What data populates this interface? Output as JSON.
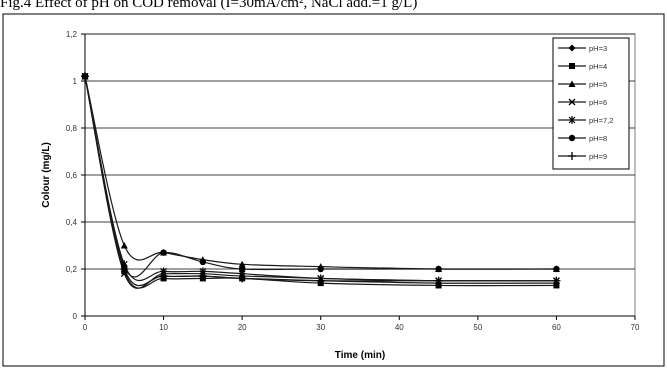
{
  "caption": "Fig.4 Effect of pH on COD removal (I=30mA/cm², NaCl add.=1 g/L)",
  "chart_data": {
    "type": "line",
    "title": "",
    "xlabel": "Time (min)",
    "ylabel": "Colour (mg/L)",
    "xlim": [
      0,
      70
    ],
    "ylim": [
      0,
      1.2
    ],
    "xticks": [
      0,
      10,
      20,
      30,
      40,
      50,
      60,
      70
    ],
    "yticks": [
      "0",
      "0,2",
      "0,4",
      "0,6",
      "0,8",
      "1",
      "1,2"
    ],
    "grid": "horizontal",
    "legend_position": "top-right",
    "x": [
      0,
      5,
      10,
      15,
      20,
      30,
      45,
      60
    ],
    "series": [
      {
        "name": "pH=3",
        "marker": "diamond",
        "values": [
          1.02,
          0.2,
          0.17,
          0.17,
          0.16,
          0.15,
          0.14,
          0.14
        ]
      },
      {
        "name": "pH=4",
        "marker": "square",
        "values": [
          1.02,
          0.19,
          0.16,
          0.16,
          0.16,
          0.14,
          0.13,
          0.13
        ]
      },
      {
        "name": "pH=5",
        "marker": "triangle",
        "values": [
          1.02,
          0.3,
          0.27,
          0.24,
          0.22,
          0.21,
          0.2,
          0.2
        ]
      },
      {
        "name": "pH=6",
        "marker": "x",
        "values": [
          1.02,
          0.18,
          0.18,
          0.18,
          0.17,
          0.16,
          0.15,
          0.15
        ]
      },
      {
        "name": "pH=7,2",
        "marker": "star",
        "values": [
          1.02,
          0.22,
          0.19,
          0.19,
          0.18,
          0.16,
          0.15,
          0.15
        ]
      },
      {
        "name": "pH=8",
        "marker": "circle",
        "values": [
          1.02,
          0.21,
          0.27,
          0.23,
          0.2,
          0.2,
          0.2,
          0.2
        ]
      },
      {
        "name": "pH=9",
        "marker": "plus",
        "values": [
          1.02,
          0.2,
          0.17,
          0.17,
          0.16,
          0.15,
          0.15,
          0.15
        ]
      }
    ]
  }
}
